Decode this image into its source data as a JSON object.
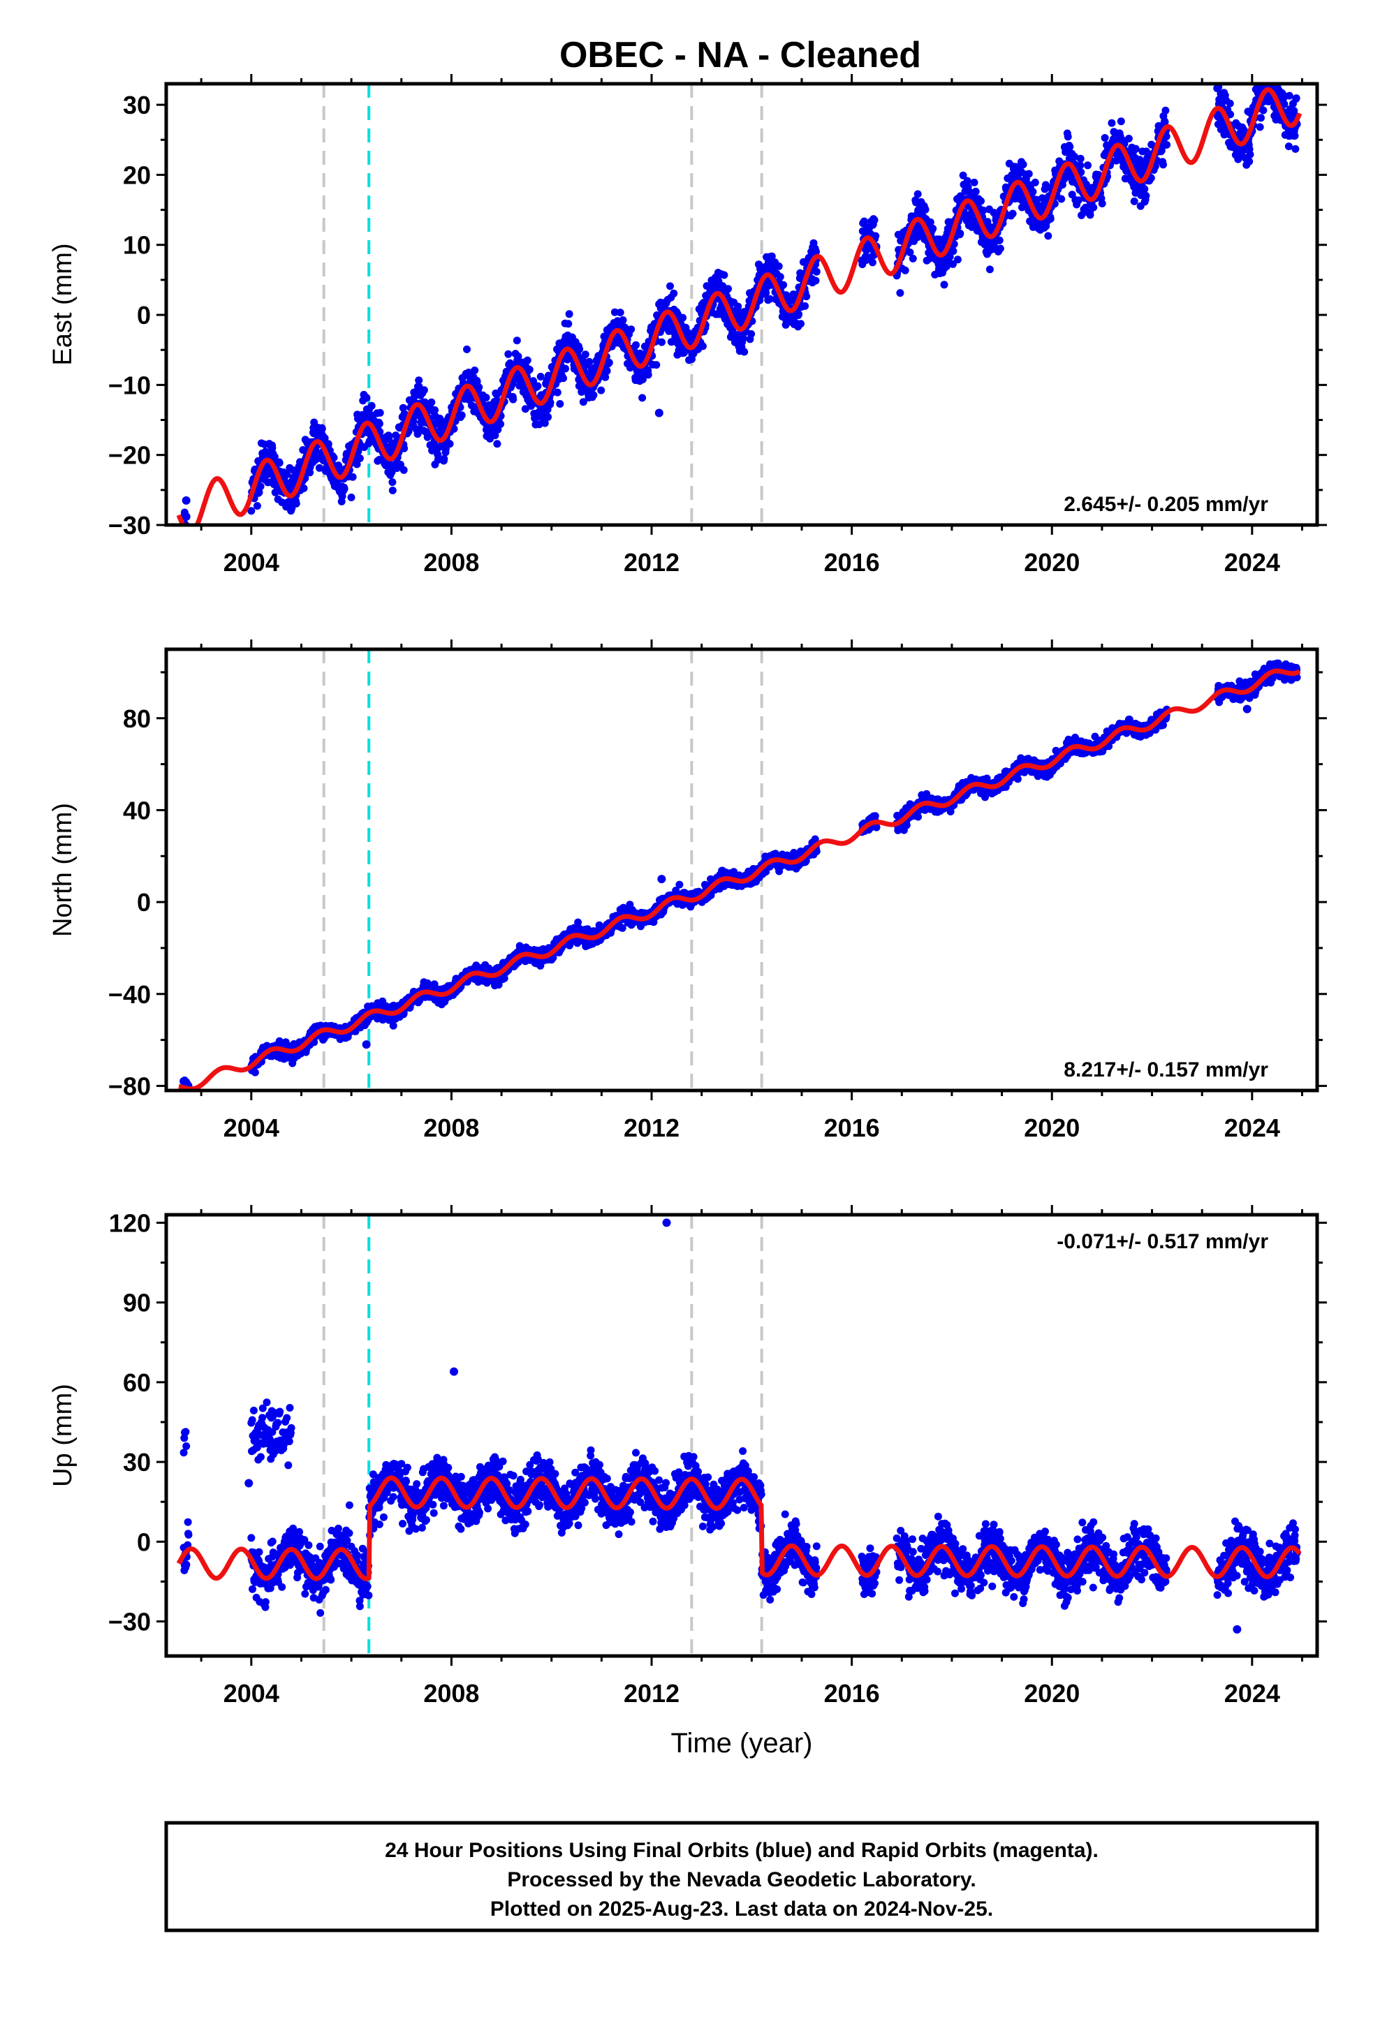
{
  "title": "OBEC  - NA - Cleaned",
  "colors": {
    "final_orbits": "#0000ee",
    "model": "#ee1111",
    "equipment_change": "#c8c8c8",
    "earthquake": "#00e0e0",
    "frame": "#000000"
  },
  "chart_data": [
    {
      "type": "scatter",
      "component": "east",
      "ylabel": "East (mm)",
      "xlabel": "",
      "xlim": [
        2002.3,
        2025.3
      ],
      "ylim": [
        -30,
        33
      ],
      "x_ticks": [
        "2004",
        "2008",
        "2012",
        "2016",
        "2020",
        "2024"
      ],
      "y_ticks": [
        "−30",
        "−20",
        "−10",
        "0",
        "10",
        "20",
        "30"
      ],
      "rate_label": "2.645+/- 0.205 mm/yr",
      "rate_position": "bottom-right",
      "model": {
        "rate": 2.645,
        "value_at_2014": 1.7,
        "annual_amplitude": 3.2,
        "annual_phase": 0.05
      },
      "data_spans": [
        [
          2002.65,
          2002.75
        ],
        [
          2004.0,
          2015.3
        ],
        [
          2016.2,
          2016.5
        ],
        [
          2016.9,
          2022.3
        ],
        [
          2023.3,
          2024.9
        ]
      ],
      "scatter_sd": 1.6,
      "outliers": [
        [
          2002.7,
          -28.8
        ],
        [
          2002.7,
          -26.5
        ],
        [
          2012.15,
          -14.0
        ],
        [
          2011.1,
          -8.0
        ]
      ],
      "equipment_changes": [
        2005.45,
        2012.8,
        2014.2
      ],
      "earthquakes": [
        2006.35
      ],
      "offsets": []
    },
    {
      "type": "scatter",
      "component": "north",
      "ylabel": "North (mm)",
      "xlabel": "",
      "xlim": [
        2002.3,
        2025.3
      ],
      "ylim": [
        -82,
        110
      ],
      "x_ticks": [
        "2004",
        "2008",
        "2012",
        "2016",
        "2020",
        "2024"
      ],
      "y_ticks": [
        "−80",
        "−40",
        "0",
        "40",
        "80"
      ],
      "rate_label": "8.217+/- 0.157 mm/yr",
      "rate_position": "bottom-right",
      "model": {
        "rate": 8.217,
        "value_at_2014": 12.5,
        "annual_amplitude": 2.2,
        "annual_phase": 0.15
      },
      "data_spans": [
        [
          2002.65,
          2002.75
        ],
        [
          2004.0,
          2015.3
        ],
        [
          2016.2,
          2016.5
        ],
        [
          2016.9,
          2022.3
        ],
        [
          2023.3,
          2024.9
        ]
      ],
      "scatter_sd": 1.6,
      "outliers": [
        [
          2002.65,
          -78.0
        ],
        [
          2006.3,
          -62.0
        ],
        [
          2012.2,
          10.0
        ],
        [
          2023.9,
          84.0
        ]
      ],
      "equipment_changes": [
        2005.45,
        2012.8,
        2014.2
      ],
      "earthquakes": [
        2006.35
      ],
      "offsets": []
    },
    {
      "type": "scatter",
      "component": "up",
      "ylabel": "Up (mm)",
      "xlabel": "Time (year)",
      "xlim": [
        2002.3,
        2025.3
      ],
      "ylim": [
        -43,
        123
      ],
      "x_ticks": [
        "2004",
        "2008",
        "2012",
        "2016",
        "2020",
        "2024"
      ],
      "y_ticks": [
        "−30",
        "0",
        "30",
        "60",
        "90",
        "120"
      ],
      "rate_label": "-0.071+/- 0.517 mm/yr",
      "rate_position": "top-right",
      "model": {
        "rate": -0.071,
        "value_at_2014": 0.0,
        "annual_amplitude": 5.5,
        "annual_phase": 0.55
      },
      "model_steps": [
        [
          2002.0,
          -9.0
        ],
        [
          2006.35,
          18.0
        ],
        [
          2014.2,
          -7.0
        ]
      ],
      "data_spans": [
        [
          2002.65,
          2002.75
        ],
        [
          2004.0,
          2015.3
        ],
        [
          2016.2,
          2016.5
        ],
        [
          2016.9,
          2022.3
        ],
        [
          2023.3,
          2024.9
        ]
      ],
      "scatter_sd": 4.5,
      "clusters": [
        {
          "x": [
            2004.0,
            2004.8
          ],
          "y": 40,
          "sd": 5
        },
        {
          "x": [
            2002.65,
            2002.7
          ],
          "y": 38,
          "sd": 3
        }
      ],
      "outliers": [
        [
          2012.3,
          120.0
        ],
        [
          2008.05,
          64.0
        ],
        [
          2003.95,
          22.0
        ],
        [
          2023.7,
          -33.0
        ]
      ],
      "equipment_changes": [
        2005.45,
        2012.8,
        2014.2
      ],
      "earthquakes": [
        2006.35
      ],
      "offsets": []
    }
  ],
  "footer": {
    "line1": "24 Hour Positions Using Final Orbits (blue) and Rapid Orbits (magenta).",
    "line2": "Processed by the Nevada Geodetic Laboratory.",
    "line3": "Plotted on 2025-Aug-23. Last data on 2024-Nov-25."
  }
}
